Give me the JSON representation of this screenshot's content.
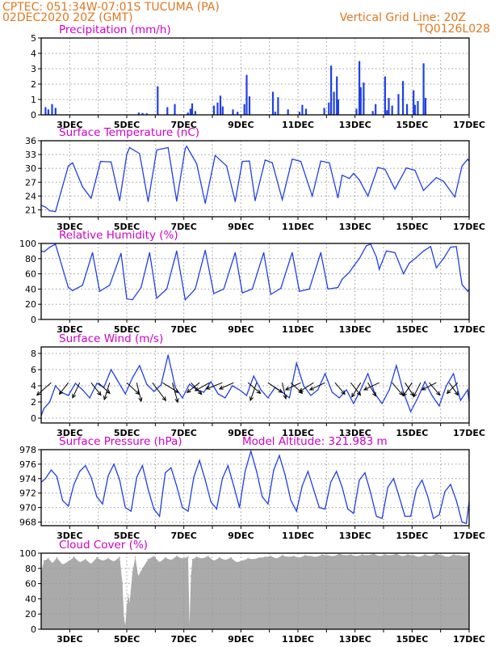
{
  "header": {
    "line1": "CPTEC:   051:34W-07:01S   TUCUMA (PA)",
    "line2": "02DEC2020 20Z (GMT)",
    "grid_note": "Vertical Grid Line: 20Z",
    "code": "TQ0126L028"
  },
  "colors": {
    "series": "#2040e8",
    "cloud": "#aaaaaa",
    "header": "#e07820",
    "title": "#d000c8",
    "arrow": "#000000"
  },
  "x_days": [
    3,
    4,
    5,
    6,
    7,
    8,
    9,
    10,
    11,
    12,
    13,
    14,
    15,
    16,
    17
  ],
  "x_tick_labels": [
    "3DEC",
    "5DEC",
    "7DEC",
    "9DEC",
    "11DEC",
    "13DEC",
    "15DEC",
    "17DEC"
  ],
  "x_tick_days": [
    3,
    5,
    7,
    9,
    11,
    13,
    15,
    17
  ],
  "chart_data": [
    {
      "type": "bar",
      "title": "Precipitation (mm/h)",
      "ylim": [
        0,
        5
      ],
      "yticks": [
        0,
        1,
        2,
        3,
        4,
        5
      ],
      "x": [
        2.15,
        2.25,
        2.38,
        2.5,
        5.42,
        5.55,
        5.7,
        6.08,
        6.42,
        6.68,
        7.14,
        7.23,
        7.29,
        7.4,
        8.05,
        8.18,
        8.28,
        8.36,
        8.72,
        8.88,
        9.12,
        9.2,
        9.3,
        10.12,
        10.2,
        10.3,
        10.65,
        11.05,
        11.15,
        11.28,
        11.92,
        12.08,
        12.16,
        12.26,
        12.36,
        12.41,
        13.05,
        13.15,
        13.2,
        13.3,
        13.62,
        13.72,
        14.05,
        14.12,
        14.18,
        14.3,
        14.52,
        14.68,
        14.82,
        15.05,
        15.1,
        15.2,
        15.4,
        15.47
      ],
      "values": [
        0.5,
        0.35,
        0.7,
        0.45,
        0.15,
        0.12,
        0.1,
        1.85,
        0.5,
        0.7,
        0.15,
        0.4,
        0.75,
        0.25,
        0.6,
        0.8,
        1.25,
        0.55,
        0.35,
        0.2,
        0.7,
        2.6,
        1.2,
        1.5,
        0.2,
        1.15,
        0.35,
        0.2,
        0.65,
        0.4,
        0.45,
        0.8,
        3.2,
        1.5,
        2.5,
        1.0,
        0.4,
        3.5,
        1.8,
        2.1,
        0.25,
        0.7,
        2.5,
        0.3,
        1.1,
        0.6,
        1.35,
        2.2,
        0.7,
        1.6,
        0.65,
        0.9,
        3.35,
        1.1
      ]
    },
    {
      "type": "line",
      "title": "Surface Temperature (nC)",
      "ylim": [
        19.5,
        36
      ],
      "yticks": [
        21,
        24,
        27,
        30,
        33,
        36
      ],
      "x": [
        2.0,
        2.15,
        2.3,
        2.5,
        2.7,
        2.95,
        3.1,
        3.45,
        3.75,
        4.08,
        4.45,
        4.75,
        5.0,
        5.1,
        5.45,
        5.75,
        6.05,
        6.45,
        6.75,
        7.05,
        7.1,
        7.45,
        7.75,
        8.1,
        8.5,
        8.8,
        9.05,
        9.3,
        9.5,
        9.85,
        10.1,
        10.45,
        10.8,
        11.1,
        11.5,
        11.8,
        12.1,
        12.4,
        12.55,
        12.8,
        12.95,
        13.15,
        13.45,
        13.8,
        14.05,
        14.4,
        14.8,
        15.1,
        15.4,
        15.85,
        16.1,
        16.5,
        16.75,
        16.95,
        17.0
      ],
      "values": [
        22.0,
        21.6,
        20.8,
        20.6,
        25.0,
        30.5,
        31.2,
        26.0,
        23.5,
        31.5,
        31.4,
        23.0,
        33.0,
        34.5,
        33.2,
        22.8,
        34.0,
        34.5,
        22.9,
        34.3,
        34.8,
        31.0,
        22.4,
        32.8,
        30.5,
        22.8,
        31.5,
        31.6,
        23.0,
        31.8,
        31.2,
        23.2,
        32.0,
        31.5,
        24.0,
        31.6,
        31.2,
        23.6,
        28.5,
        27.8,
        28.9,
        27.5,
        24.0,
        30.2,
        29.8,
        25.5,
        30.1,
        29.6,
        25.2,
        28.0,
        27.2,
        23.8,
        30.5,
        32.0,
        31.5
      ]
    },
    {
      "type": "line",
      "title": "Relative Humidity (%)",
      "ylim": [
        0,
        100
      ],
      "yticks": [
        0,
        20,
        40,
        60,
        80,
        100
      ],
      "x": [
        2.0,
        2.1,
        2.3,
        2.5,
        2.65,
        2.95,
        3.1,
        3.45,
        3.8,
        4.05,
        4.4,
        4.8,
        5.0,
        5.2,
        5.5,
        5.8,
        6.05,
        6.4,
        6.75,
        7.05,
        7.4,
        7.75,
        8.05,
        8.4,
        8.8,
        9.05,
        9.4,
        9.8,
        10.05,
        10.4,
        10.8,
        11.05,
        11.4,
        11.8,
        12.05,
        12.4,
        12.55,
        12.8,
        12.95,
        13.15,
        13.4,
        13.55,
        13.75,
        13.85,
        14.1,
        14.4,
        14.7,
        14.9,
        15.1,
        15.4,
        15.65,
        15.85,
        16.1,
        16.35,
        16.55,
        16.75,
        16.95,
        17.0
      ],
      "values": [
        90,
        89,
        95,
        99,
        80,
        42,
        38,
        45,
        88,
        37,
        45,
        87,
        27,
        26,
        42,
        88,
        28,
        40,
        90,
        26,
        40,
        91,
        34,
        40,
        88,
        35,
        40,
        88,
        33,
        41,
        88,
        37,
        40,
        88,
        40,
        42,
        53,
        62,
        70,
        80,
        97,
        99,
        82,
        66,
        90,
        88,
        60,
        74,
        80,
        90,
        96,
        68,
        80,
        95,
        96,
        46,
        37,
        40
      ]
    },
    {
      "type": "line",
      "title": "Surface Wind (m/s)",
      "ylim": [
        -0.6,
        8.8
      ],
      "yticks": [
        0,
        2,
        4,
        6,
        8
      ],
      "x": [
        2.0,
        2.1,
        2.3,
        2.5,
        2.7,
        2.95,
        3.2,
        3.45,
        3.7,
        3.95,
        4.2,
        4.45,
        4.7,
        4.95,
        5.2,
        5.45,
        5.7,
        5.95,
        6.2,
        6.45,
        6.7,
        6.95,
        7.2,
        7.45,
        7.7,
        7.95,
        8.2,
        8.45,
        8.7,
        8.95,
        9.2,
        9.45,
        9.7,
        9.95,
        10.2,
        10.45,
        10.7,
        10.95,
        11.2,
        11.45,
        11.7,
        11.95,
        12.2,
        12.45,
        12.7,
        12.95,
        13.2,
        13.45,
        13.7,
        13.95,
        14.2,
        14.45,
        14.7,
        14.95,
        15.2,
        15.45,
        15.7,
        15.95,
        16.2,
        16.45,
        16.7,
        16.95,
        17.0
      ],
      "values": [
        0.3,
        1.2,
        2.0,
        4.0,
        3.2,
        2.8,
        4.3,
        3.5,
        2.5,
        4.3,
        3.8,
        6.0,
        4.5,
        3.0,
        5.0,
        6.5,
        4.2,
        3.3,
        4.1,
        7.8,
        3.8,
        2.5,
        4.2,
        3.5,
        3.2,
        4.5,
        3.0,
        2.5,
        4.0,
        3.5,
        2.8,
        5.2,
        3.5,
        2.5,
        3.8,
        3.2,
        2.5,
        6.8,
        4.0,
        2.8,
        3.5,
        5.5,
        3.2,
        2.5,
        3.5,
        1.8,
        3.5,
        5.5,
        3.0,
        1.8,
        3.5,
        6.5,
        3.2,
        0.8,
        2.5,
        4.5,
        2.8,
        1.5,
        4.0,
        5.5,
        2.2,
        3.5,
        2.0
      ]
    },
    {
      "type": "line",
      "title": "Surface Pressure (hPa)",
      "annotation": "Model Altitude: 321.983 m",
      "ylim": [
        967.5,
        978
      ],
      "yticks": [
        968,
        970,
        972,
        974,
        976,
        978
      ],
      "x": [
        2.0,
        2.15,
        2.35,
        2.55,
        2.75,
        2.95,
        3.15,
        3.35,
        3.55,
        3.75,
        3.95,
        4.15,
        4.35,
        4.55,
        4.75,
        4.95,
        5.15,
        5.35,
        5.55,
        5.75,
        5.95,
        6.15,
        6.35,
        6.55,
        6.75,
        6.95,
        7.15,
        7.35,
        7.55,
        7.75,
        7.95,
        8.15,
        8.35,
        8.55,
        8.75,
        8.95,
        9.15,
        9.35,
        9.55,
        9.75,
        9.95,
        10.15,
        10.35,
        10.55,
        10.75,
        10.95,
        11.15,
        11.35,
        11.55,
        11.75,
        11.95,
        12.15,
        12.35,
        12.55,
        12.75,
        12.95,
        13.15,
        13.35,
        13.55,
        13.75,
        13.95,
        14.15,
        14.35,
        14.55,
        14.75,
        14.95,
        15.15,
        15.35,
        15.55,
        15.75,
        15.95,
        16.15,
        16.35,
        16.55,
        16.75,
        16.9,
        17.0
      ],
      "values": [
        973.5,
        974.0,
        975.2,
        974.3,
        971.0,
        970.2,
        973.2,
        975.0,
        975.8,
        974.2,
        971.5,
        970.5,
        974.4,
        976.0,
        973.8,
        970.0,
        969.5,
        974.2,
        975.8,
        972.5,
        969.8,
        968.8,
        974.8,
        975.5,
        973.0,
        970.0,
        969.5,
        974.2,
        976.5,
        973.8,
        970.8,
        969.8,
        974.0,
        975.8,
        973.0,
        970.0,
        975.0,
        977.8,
        975.0,
        971.5,
        970.5,
        975.2,
        977.2,
        974.5,
        971.0,
        969.5,
        973.0,
        975.0,
        972.5,
        970.0,
        969.8,
        973.5,
        975.0,
        972.8,
        969.8,
        969.2,
        973.8,
        974.8,
        972.0,
        968.8,
        968.5,
        972.8,
        974.0,
        971.5,
        968.8,
        968.8,
        972.5,
        973.8,
        971.5,
        968.5,
        969.0,
        972.2,
        973.2,
        971.0,
        968.0,
        967.8,
        970.8
      ]
    },
    {
      "type": "area",
      "title": "Cloud Cover (%)",
      "ylim": [
        0,
        100
      ],
      "yticks": [
        0,
        20,
        40,
        60,
        80,
        100
      ],
      "x": [
        2.0,
        2.1,
        2.25,
        2.4,
        2.55,
        2.75,
        2.95,
        3.15,
        3.35,
        3.55,
        3.75,
        3.95,
        4.15,
        4.35,
        4.55,
        4.75,
        4.85,
        4.9,
        4.95,
        5.0,
        5.05,
        5.1,
        5.2,
        5.3,
        5.4,
        5.55,
        5.75,
        5.95,
        6.15,
        6.35,
        6.55,
        6.75,
        6.95,
        7.15,
        7.2,
        7.25,
        7.3,
        7.45,
        7.65,
        7.85,
        8.05,
        8.25,
        8.45,
        8.65,
        8.85,
        9.05,
        9.25,
        9.45,
        9.65,
        9.85,
        10.05,
        10.25,
        10.45,
        10.65,
        10.85,
        11.05,
        11.25,
        11.45,
        11.65,
        11.85,
        12.05,
        12.25,
        12.45,
        12.65,
        12.85,
        13.05,
        13.25,
        13.45,
        13.65,
        13.85,
        14.05,
        14.25,
        14.45,
        14.65,
        14.85,
        15.05,
        15.25,
        15.45,
        15.65,
        15.85,
        16.05,
        16.25,
        16.45,
        16.65,
        16.85,
        17.0
      ],
      "values": [
        75,
        90,
        93,
        87,
        94,
        85,
        89,
        95,
        88,
        92,
        86,
        94,
        90,
        93,
        89,
        95,
        60,
        15,
        5,
        30,
        45,
        35,
        75,
        95,
        70,
        80,
        92,
        96,
        88,
        94,
        91,
        96,
        93,
        95,
        5,
        70,
        92,
        95,
        93,
        96,
        90,
        94,
        91,
        94,
        88,
        90,
        93,
        92,
        94,
        95,
        96,
        93,
        97,
        95,
        96,
        94,
        97,
        96,
        95,
        98,
        97,
        96,
        99,
        97,
        98,
        96,
        98,
        97,
        99,
        96,
        98,
        97,
        99,
        96,
        98,
        97,
        95,
        98,
        96,
        99,
        97,
        95,
        98,
        97,
        96,
        98
      ]
    }
  ],
  "wind_vectors": [
    {
      "day": 2.35,
      "dx": -0.8,
      "dy": 0.7
    },
    {
      "day": 2.95,
      "dx": -0.5,
      "dy": 0.65
    },
    {
      "day": 3.35,
      "dx": -0.4,
      "dy": 0.85
    },
    {
      "day": 3.75,
      "dx": 0.55,
      "dy": 0.7
    },
    {
      "day": 4.0,
      "dx": 0.65,
      "dy": 0.6
    },
    {
      "day": 4.4,
      "dx": -0.3,
      "dy": 0.95
    },
    {
      "day": 5.0,
      "dx": 0.7,
      "dy": 0.65
    },
    {
      "day": 5.35,
      "dx": 0.25,
      "dy": 1.05
    },
    {
      "day": 5.9,
      "dx": 0.75,
      "dy": 1.0
    },
    {
      "day": 6.25,
      "dx": 0.9,
      "dy": 0.55
    },
    {
      "day": 6.6,
      "dx": 0.3,
      "dy": 1.1
    },
    {
      "day": 7.25,
      "dx": 0.6,
      "dy": 0.65
    },
    {
      "day": 7.55,
      "dx": -0.7,
      "dy": 0.55
    },
    {
      "day": 7.9,
      "dx": -0.8,
      "dy": 0.45
    },
    {
      "day": 8.35,
      "dx": -0.9,
      "dy": 0.35
    },
    {
      "day": 8.75,
      "dx": -0.8,
      "dy": 0.35
    },
    {
      "day": 9.25,
      "dx": 0.7,
      "dy": 0.6
    },
    {
      "day": 9.55,
      "dx": -0.35,
      "dy": 1.0
    },
    {
      "day": 9.95,
      "dx": 0.8,
      "dy": 0.55
    },
    {
      "day": 10.45,
      "dx": 0.2,
      "dy": 0.9
    },
    {
      "day": 10.75,
      "dx": 0.65,
      "dy": 0.6
    },
    {
      "day": 11.1,
      "dx": -0.85,
      "dy": 0.4
    },
    {
      "day": 11.55,
      "dx": -0.8,
      "dy": 0.5
    },
    {
      "day": 11.95,
      "dx": -0.85,
      "dy": 0.4
    },
    {
      "day": 12.3,
      "dx": 0.55,
      "dy": 0.65
    },
    {
      "day": 12.85,
      "dx": 0.55,
      "dy": 0.7
    },
    {
      "day": 13.2,
      "dx": -0.5,
      "dy": 0.8
    },
    {
      "day": 13.45,
      "dx": 0.45,
      "dy": 0.75
    },
    {
      "day": 13.85,
      "dx": -0.85,
      "dy": 0.4
    },
    {
      "day": 14.3,
      "dx": 0.6,
      "dy": 0.7
    },
    {
      "day": 14.75,
      "dx": 0.5,
      "dy": 0.75
    },
    {
      "day": 15.0,
      "dx": -0.5,
      "dy": 0.75
    },
    {
      "day": 15.3,
      "dx": -0.4,
      "dy": 0.8
    },
    {
      "day": 15.6,
      "dx": 0.6,
      "dy": 0.7
    },
    {
      "day": 15.85,
      "dx": -0.8,
      "dy": 0.4
    },
    {
      "day": 16.3,
      "dx": 0.5,
      "dy": 0.7
    },
    {
      "day": 16.6,
      "dx": -0.6,
      "dy": 0.6
    }
  ]
}
